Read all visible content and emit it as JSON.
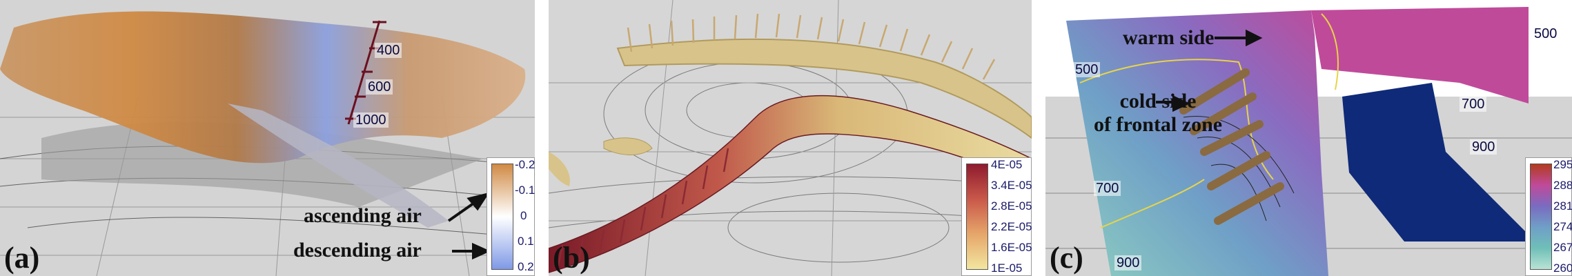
{
  "panels": {
    "a": {
      "label": "(a)",
      "pressure_ticks": [
        "400",
        "600",
        "1000"
      ],
      "annotations": {
        "ascending": "ascending air",
        "descending": "descending air"
      },
      "colorbar": {
        "ticks": [
          "-0.2",
          "-0.1",
          "0",
          "0.1",
          "0.2"
        ],
        "colors": [
          "#d08a44",
          "#ffffff",
          "#7f99e6"
        ]
      }
    },
    "b": {
      "label": "(b)",
      "colorbar": {
        "ticks": [
          "4E-05",
          "3.4E-05",
          "2.8E-05",
          "2.2E-05",
          "1.6E-05",
          "1E-05"
        ],
        "colors": [
          "#8e1b2e",
          "#c9584a",
          "#e6a66a",
          "#f2e6a0"
        ]
      }
    },
    "c": {
      "label": "(c)",
      "isobars": [
        "500",
        "500",
        "700",
        "700",
        "900",
        "900"
      ],
      "annotations": {
        "warm": "warm side",
        "cold_line1": "cold side",
        "cold_line2": "of frontal zone"
      },
      "colorbar": {
        "ticks": [
          "295",
          "288",
          "281",
          "274",
          "267",
          "260"
        ],
        "colors": [
          "#b23b1e",
          "#c04a9a",
          "#7a6bc0",
          "#6f9fc7",
          "#6fbfb8",
          "#b9e3d4"
        ]
      }
    }
  }
}
